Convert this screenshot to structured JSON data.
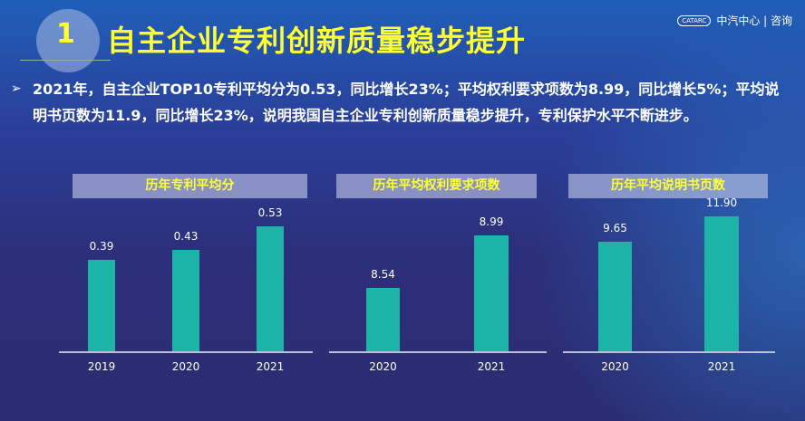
{
  "header": {
    "number": "1",
    "title": "自主企业专利创新质量稳步提升",
    "logo_text": "中汽中心 | 咨询",
    "logo_mark": "CATARC"
  },
  "paragraph": "2021年，自主企业TOP10专利平均分为0.53，同比增长23%；平均权利要求项数为8.99，同比增长5%；平均说明书页数为11.9，同比增长23%，说明我国自主企业专利创新质量稳步提升，专利保护水平不断进步。",
  "colors": {
    "bar": "#1db4a8",
    "title": "#ffff33"
  },
  "chart_data": [
    {
      "type": "bar",
      "title": "历年专利平均分",
      "categories": [
        "2019",
        "2020",
        "2021"
      ],
      "values": [
        0.39,
        0.43,
        0.53
      ],
      "value_labels": [
        "0.39",
        "0.43",
        "0.53"
      ],
      "ylim": [
        0,
        0.77
      ],
      "grid": false
    },
    {
      "type": "bar",
      "title": "历年平均权利要求项数",
      "categories": [
        "2020",
        "2021"
      ],
      "values": [
        8.54,
        8.99
      ],
      "value_labels": [
        "8.54",
        "8.99"
      ],
      "ylim": [
        8,
        9.55
      ],
      "grid": false
    },
    {
      "type": "bar",
      "title": "历年平均说明书页数",
      "categories": [
        "2020",
        "2021"
      ],
      "values": [
        9.65,
        11.9
      ],
      "value_labels": [
        "9.65",
        "11.90"
      ],
      "ylim": [
        0,
        16
      ],
      "grid": false
    }
  ]
}
